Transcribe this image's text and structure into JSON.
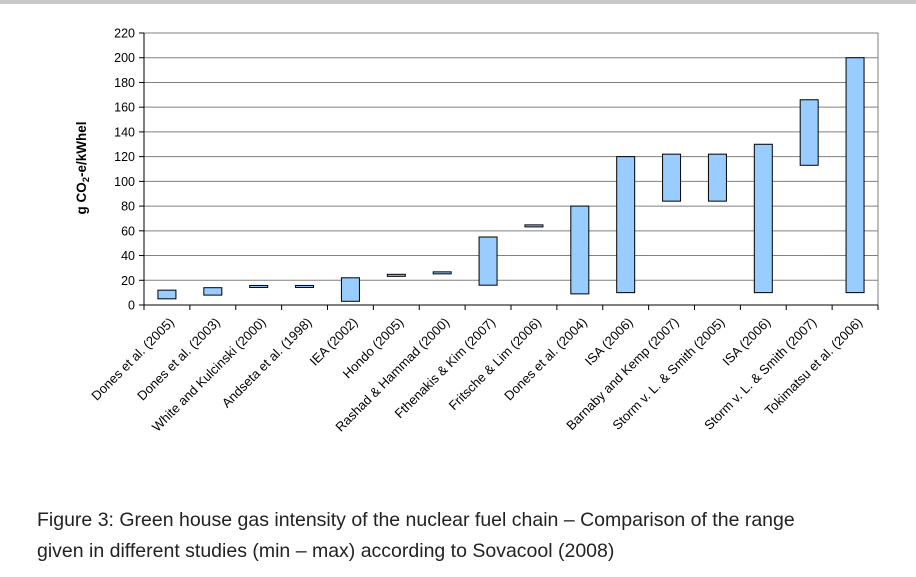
{
  "caption": {
    "line1": "Figure 3: Green house gas intensity of the nuclear fuel chain – Comparison of the range",
    "line2": "given in different studies (min – max) according to Sovacool (2008)"
  },
  "chart_data": {
    "type": "bar",
    "subtype": "floating-range",
    "title": "",
    "xlabel": "",
    "ylabel": "g CO2-e/kWhel",
    "ylim": [
      0,
      220
    ],
    "yticks": [
      0,
      20,
      40,
      60,
      80,
      100,
      120,
      140,
      160,
      180,
      200,
      220
    ],
    "grid": true,
    "bar_color": "#99ccff",
    "categories": [
      "Dones et al. (2005)",
      "Dones et al. (2003)",
      "White and Kulcinski (2000)",
      "Andseta et al. (1998)",
      "IEA (2002)",
      "Hondo (2005)",
      "Rashad & Hammad (2000)",
      "Fthenakis & Kim (2007)",
      "Fritsche & Lim (2006)",
      "Dones et al. (2004)",
      "ISA (2006)",
      "Barnaby and Kemp (2007)",
      "Storm v. L. & Smith (2005)",
      "ISA (2006)",
      "Storm v. L. & Smith (2007)",
      "Tokimatsu et al. (2006)"
    ],
    "min": [
      5,
      8,
      15,
      15,
      3,
      24,
      26,
      16,
      64,
      9,
      10,
      84,
      84,
      10,
      113,
      10
    ],
    "max": [
      12,
      14,
      15,
      15,
      22,
      24,
      26,
      55,
      64,
      80,
      120,
      122,
      122,
      130,
      166,
      200
    ]
  }
}
